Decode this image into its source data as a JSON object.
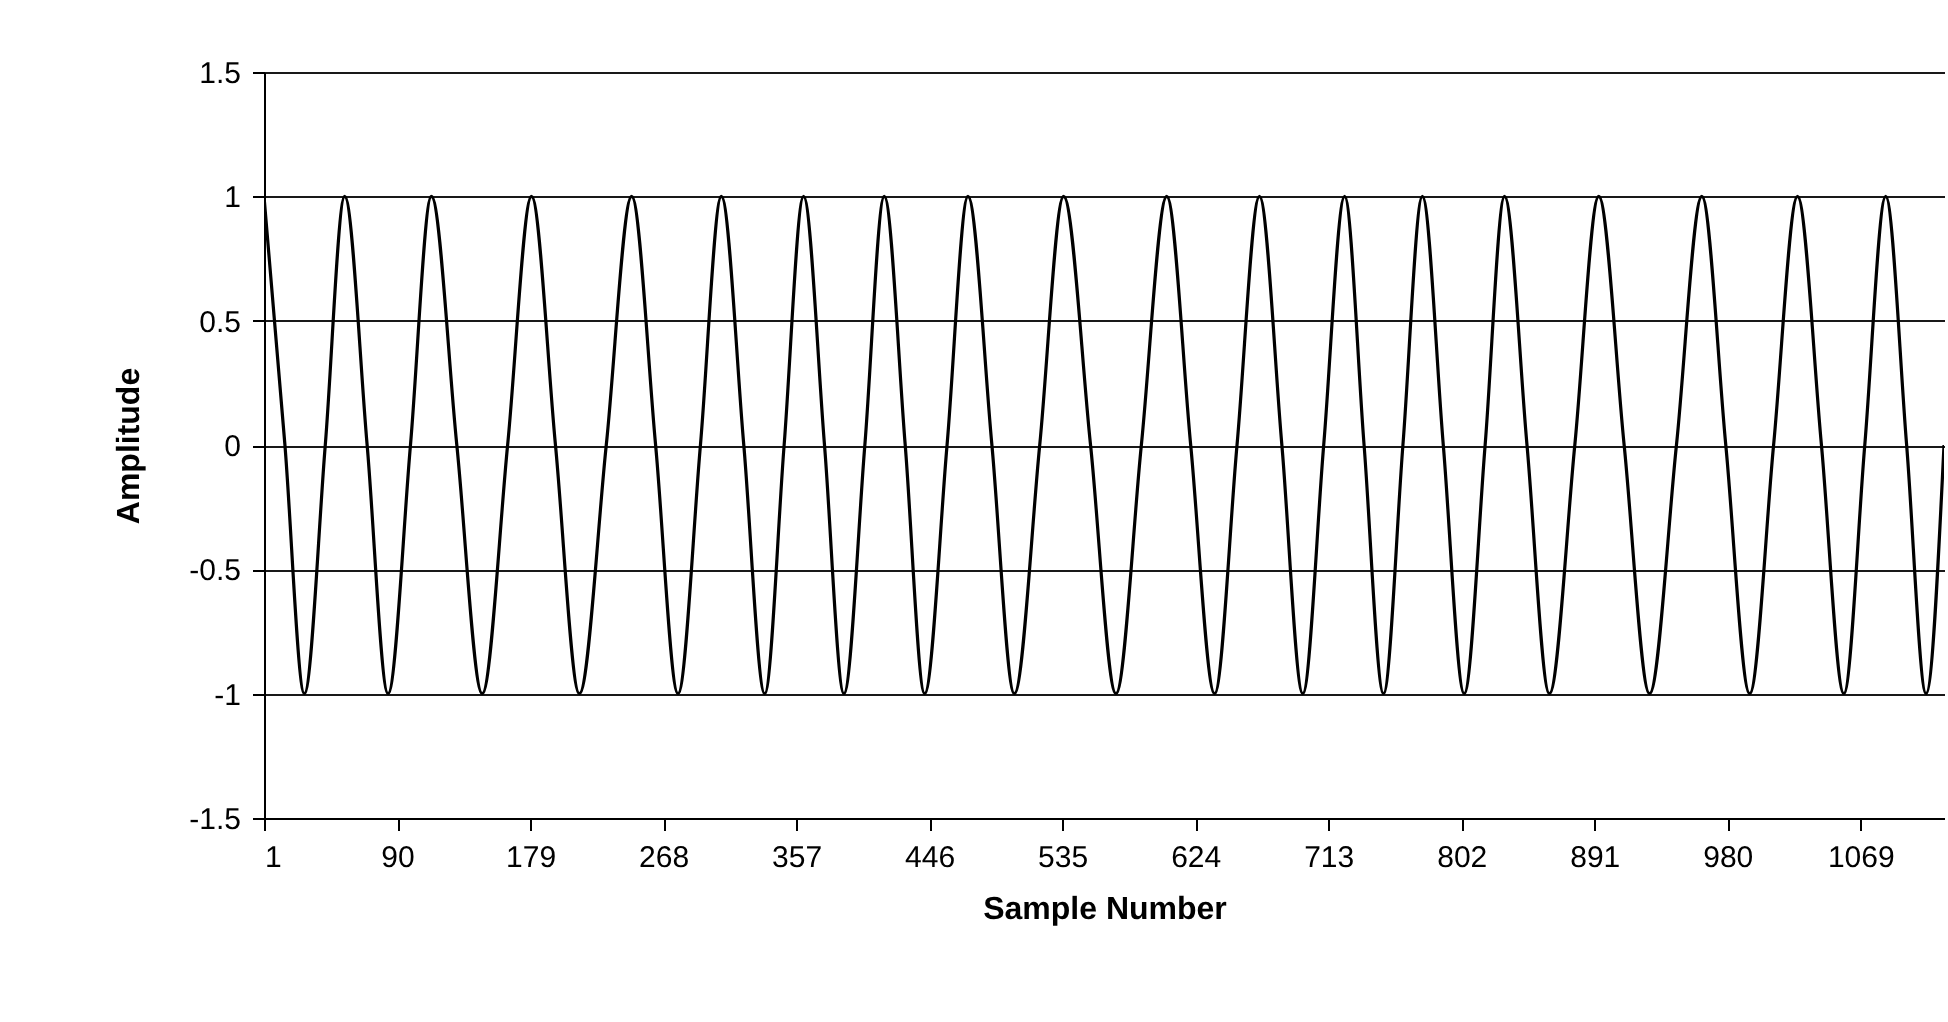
{
  "chart_data": {
    "type": "line",
    "xlabel": "Sample Number",
    "ylabel": "Amplitude",
    "xlim": [
      1,
      1125
    ],
    "xticks": [
      1,
      90,
      179,
      268,
      357,
      446,
      535,
      624,
      713,
      802,
      891,
      980,
      1069
    ],
    "ylim": [
      -1.5,
      1.5
    ],
    "yticks": [
      -1.5,
      -1,
      -0.5,
      0,
      0.5,
      1,
      1.5
    ],
    "grid": "y",
    "marker": "none",
    "line_style": "solid",
    "series": [
      {
        "color": "#000000",
        "x": [
          1,
          15,
          28,
          42,
          55,
          70,
          84,
          99,
          113,
          130,
          147,
          164,
          180,
          196,
          212,
          230,
          247,
          263,
          278,
          293,
          307,
          322,
          336,
          349,
          362,
          376,
          389,
          403,
          416,
          430,
          443,
          458,
          472,
          488,
          503,
          520,
          536,
          554,
          571,
          588,
          605,
          621,
          637,
          652,
          667,
          682,
          696,
          710,
          724,
          737,
          750,
          763,
          776,
          790,
          804,
          818,
          831,
          846,
          861,
          878,
          894,
          911,
          928,
          946,
          963,
          979,
          995,
          1011,
          1027,
          1043,
          1058,
          1072,
          1086,
          1100,
          1113,
          1125
        ],
        "values": [
          1,
          0,
          -1,
          0,
          1,
          0,
          -1,
          0,
          1,
          0,
          -1,
          0,
          1,
          0,
          -1,
          0,
          1,
          0,
          -1,
          0,
          1,
          0,
          -1,
          0,
          1,
          0,
          -1,
          0,
          1,
          0,
          -1,
          0,
          1,
          0,
          -1,
          0,
          1,
          0,
          -1,
          0,
          1,
          0,
          -1,
          0,
          1,
          0,
          -1,
          0,
          1,
          0,
          -1,
          0,
          1,
          0,
          -1,
          0,
          1,
          0,
          -1,
          0,
          1,
          0,
          -1,
          0,
          1,
          0,
          -1,
          0,
          1,
          0,
          -1,
          0,
          1,
          0,
          -1,
          0
        ]
      }
    ]
  }
}
